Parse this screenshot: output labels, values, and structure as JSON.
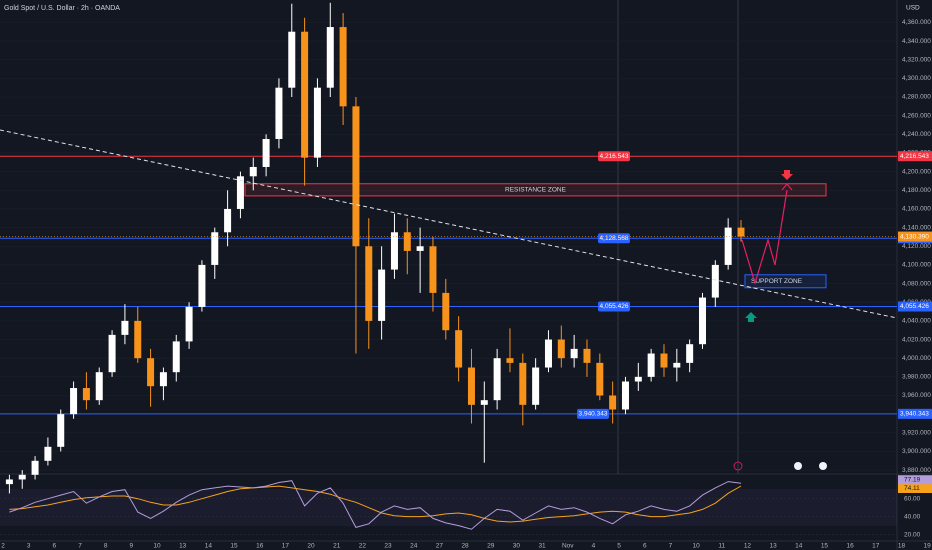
{
  "chart_data": {
    "type": "candlestick",
    "title": "Gold Spot / U.S. Dollar · 2h · OANDA",
    "currency": "USD",
    "categories": [
      "2",
      "3",
      "6",
      "7",
      "8",
      "9",
      "10",
      "13",
      "14",
      "15",
      "16",
      "17",
      "20",
      "21",
      "22",
      "23",
      "24",
      "27",
      "28",
      "29",
      "30",
      "31",
      "Nov",
      "4",
      "5",
      "6",
      "7",
      "10",
      "11",
      "12",
      "13",
      "14",
      "15",
      "16",
      "17",
      "18",
      "19"
    ],
    "ohlc": [
      [
        3865,
        3875,
        3855,
        3870
      ],
      [
        3870,
        3880,
        3860,
        3875
      ],
      [
        3875,
        3895,
        3870,
        3890
      ],
      [
        3890,
        3915,
        3885,
        3905
      ],
      [
        3905,
        3945,
        3900,
        3940
      ],
      [
        3940,
        3975,
        3935,
        3968
      ],
      [
        3968,
        3985,
        3945,
        3955
      ],
      [
        3955,
        3990,
        3950,
        3985
      ],
      [
        3985,
        4030,
        3980,
        4025
      ],
      [
        4025,
        4058,
        4015,
        4040
      ],
      [
        4040,
        4055,
        3995,
        4000
      ],
      [
        4000,
        4010,
        3948,
        3970
      ],
      [
        3970,
        3990,
        3955,
        3985
      ],
      [
        3985,
        4025,
        3975,
        4018
      ],
      [
        4018,
        4060,
        4010,
        4055
      ],
      [
        4055,
        4105,
        4050,
        4100
      ],
      [
        4100,
        4140,
        4085,
        4135
      ],
      [
        4135,
        4180,
        4120,
        4160
      ],
      [
        4160,
        4200,
        4150,
        4195
      ],
      [
        4195,
        4215,
        4180,
        4205
      ],
      [
        4205,
        4240,
        4195,
        4235
      ],
      [
        4235,
        4300,
        4225,
        4290
      ],
      [
        4290,
        4380,
        4280,
        4350
      ],
      [
        4350,
        4365,
        4185,
        4215
      ],
      [
        4215,
        4300,
        4205,
        4290
      ],
      [
        4290,
        4381,
        4280,
        4355
      ],
      [
        4355,
        4370,
        4250,
        4270
      ],
      [
        4270,
        4280,
        4005,
        4120
      ],
      [
        4120,
        4150,
        4010,
        4040
      ],
      [
        4040,
        4120,
        4020,
        4095
      ],
      [
        4095,
        4155,
        4085,
        4135
      ],
      [
        4135,
        4150,
        4090,
        4115
      ],
      [
        4115,
        4140,
        4070,
        4120
      ],
      [
        4120,
        4130,
        4050,
        4070
      ],
      [
        4070,
        4085,
        4020,
        4030
      ],
      [
        4030,
        4045,
        3975,
        3990
      ],
      [
        3990,
        4010,
        3930,
        3950
      ],
      [
        3950,
        3975,
        3888,
        3955
      ],
      [
        3955,
        4010,
        3945,
        4000
      ],
      [
        4000,
        4032,
        3985,
        3995
      ],
      [
        3995,
        4005,
        3928,
        3950
      ],
      [
        3950,
        4000,
        3945,
        3990
      ],
      [
        3990,
        4030,
        3985,
        4020
      ],
      [
        4020,
        4035,
        3990,
        4000
      ],
      [
        4000,
        4025,
        3990,
        4010
      ],
      [
        4010,
        4020,
        3980,
        3995
      ],
      [
        3995,
        4005,
        3955,
        3960
      ],
      [
        3960,
        3975,
        3930,
        3945
      ],
      [
        3945,
        3980,
        3940,
        3975
      ],
      [
        3975,
        3995,
        3965,
        3980
      ],
      [
        3980,
        4010,
        3975,
        4005
      ],
      [
        4005,
        4015,
        3980,
        3990
      ],
      [
        3990,
        4010,
        3975,
        3995
      ],
      [
        3995,
        4020,
        3985,
        4015
      ],
      [
        4015,
        4070,
        4010,
        4065
      ],
      [
        4065,
        4105,
        4055,
        4100
      ],
      [
        4100,
        4150,
        4095,
        4140
      ],
      [
        4140,
        4148,
        4125,
        4130.39
      ]
    ],
    "close_label": "4,130.390",
    "up_color": "#ffffff",
    "down_color": "#f7931a",
    "ylim": [
      3878,
      4384
    ],
    "yticks": [
      {
        "value": 3880,
        "label": "3,880.000"
      },
      {
        "value": 3900,
        "label": "3,900.000"
      },
      {
        "value": 3920,
        "label": "3,920.000"
      },
      {
        "value": 3940,
        "label": "3,940.000"
      },
      {
        "value": 3960,
        "label": "3,960.000"
      },
      {
        "value": 3980,
        "label": "3,980.000"
      },
      {
        "value": 4000,
        "label": "4,000.000"
      },
      {
        "value": 4020,
        "label": "4,020.000"
      },
      {
        "value": 4040,
        "label": "4,040.000"
      },
      {
        "value": 4060,
        "label": "4,060.000"
      },
      {
        "value": 4080,
        "label": "4,080.000"
      },
      {
        "value": 4100,
        "label": "4,100.000"
      },
      {
        "value": 4120,
        "label": "4,120.000"
      },
      {
        "value": 4140,
        "label": "4,140.000"
      },
      {
        "value": 4160,
        "label": "4,160.000"
      },
      {
        "value": 4180,
        "label": "4,180.000"
      },
      {
        "value": 4200,
        "label": "4,200.000"
      },
      {
        "value": 4220,
        "label": "4,220.000"
      },
      {
        "value": 4240,
        "label": "4,240.000"
      },
      {
        "value": 4260,
        "label": "4,260.000"
      },
      {
        "value": 4280,
        "label": "4,280.000"
      },
      {
        "value": 4300,
        "label": "4,300.000"
      },
      {
        "value": 4320,
        "label": "4,320.000"
      },
      {
        "value": 4340,
        "label": "4,340.000"
      },
      {
        "value": 4360,
        "label": "4,360.000"
      }
    ],
    "grid": true,
    "price_lines": [
      {
        "value": 4216.543,
        "label": "4,216.543",
        "color": "#f23645"
      },
      {
        "value": 4128.568,
        "label": "4,128.568",
        "color": "#2962ff"
      },
      {
        "value": 4055.426,
        "label": "4,055.426",
        "color": "#2962ff"
      },
      {
        "value": 3940.343,
        "label": "3,940.343",
        "color": "#2962ff"
      }
    ],
    "zones": [
      {
        "label": "RESISTANCE ZONE",
        "range": [
          4174,
          4187
        ],
        "color": "#f23645"
      },
      {
        "label": "SUPPORT ZONE",
        "range": [
          4075.5,
          4089.4
        ],
        "color": "#2962ff"
      }
    ],
    "rsi": {
      "values": [
        45,
        50,
        56,
        60,
        64,
        68,
        55,
        62,
        68,
        70,
        45,
        38,
        46,
        56,
        64,
        70,
        72,
        74,
        73,
        72,
        74,
        78,
        80,
        52,
        66,
        72,
        55,
        28,
        32,
        45,
        52,
        48,
        50,
        38,
        33,
        30,
        26,
        38,
        48,
        46,
        36,
        44,
        52,
        48,
        50,
        45,
        38,
        32,
        42,
        46,
        52,
        48,
        46,
        52,
        64,
        72,
        79,
        77.19
      ],
      "ma": [
        48,
        49,
        51,
        53,
        56,
        59,
        61,
        62,
        63,
        63,
        60,
        56,
        53,
        53,
        56,
        60,
        64,
        68,
        71,
        72,
        73,
        74,
        72,
        70,
        68,
        65,
        60,
        56,
        50,
        44,
        41,
        40,
        40,
        41,
        43,
        44,
        42,
        38,
        35,
        34,
        35,
        37,
        39,
        40,
        41,
        43,
        45,
        46,
        45,
        42,
        40,
        40,
        42,
        44,
        48,
        55,
        66,
        74.11
      ],
      "color": "#b39ddb",
      "ma_color": "#f7a21b",
      "ylim": [
        14,
        83
      ],
      "yticks": [
        {
          "value": 20,
          "label": "20.00"
        },
        {
          "value": 40,
          "label": "40.00"
        },
        {
          "value": 60,
          "label": "60.00"
        }
      ]
    }
  }
}
